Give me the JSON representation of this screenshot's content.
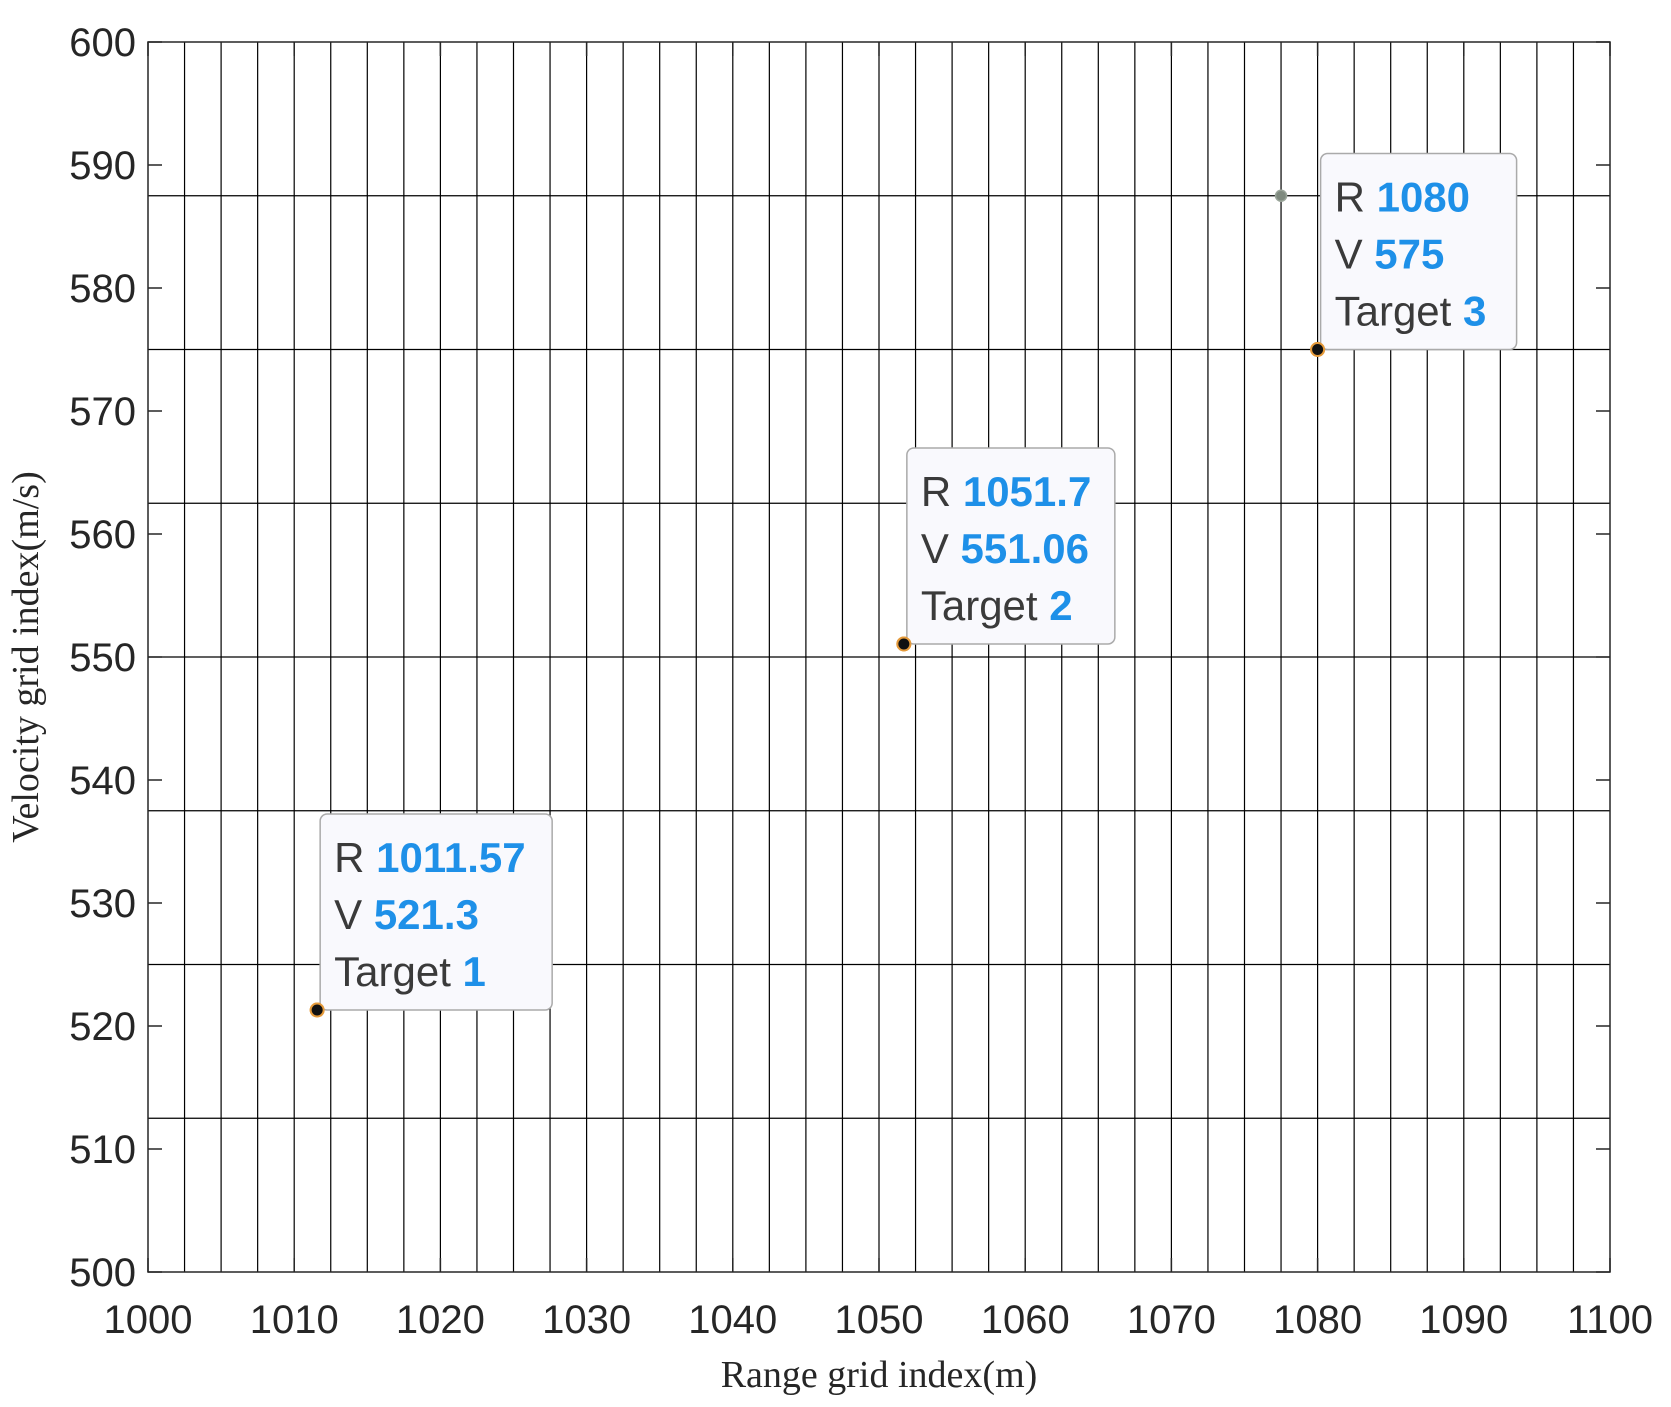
{
  "chart_data": {
    "type": "scatter",
    "xlabel": "Range grid index(m)",
    "ylabel": "Velocity grid index(m/s)",
    "xlim": [
      1000,
      1100
    ],
    "ylim": [
      500,
      600
    ],
    "x_ticks": [
      "1000",
      "1010",
      "1020",
      "1030",
      "1040",
      "1050",
      "1060",
      "1070",
      "1080",
      "1090",
      "1100"
    ],
    "y_ticks": [
      "500",
      "510",
      "520",
      "530",
      "540",
      "550",
      "560",
      "570",
      "580",
      "590",
      "600"
    ],
    "grid": true,
    "grid_x_spacing": 2.5,
    "grid_y_spacing": 12.5,
    "value_color": "#1e90e8",
    "points": [
      {
        "x": 1011.57,
        "y": 521.3
      },
      {
        "x": 1051.7,
        "y": 551.06
      },
      {
        "x": 1080,
        "y": 575
      },
      {
        "x": 1077.5,
        "y": 587.5
      }
    ],
    "datatips": [
      {
        "x": 1011.57,
        "y": 521.3,
        "r_key": "R",
        "r_value": "1011.57",
        "v_key": "V",
        "v_value": "521.3",
        "t_key": "Target",
        "t_value": "1"
      },
      {
        "x": 1051.7,
        "y": 551.06,
        "r_key": "R",
        "r_value": "1051.7",
        "v_key": "V",
        "v_value": "551.06",
        "t_key": "Target",
        "t_value": "2"
      },
      {
        "x": 1080,
        "y": 575,
        "r_key": "R",
        "r_value": "1080",
        "v_key": "V",
        "v_value": "575",
        "t_key": "Target",
        "t_value": "3"
      }
    ]
  }
}
